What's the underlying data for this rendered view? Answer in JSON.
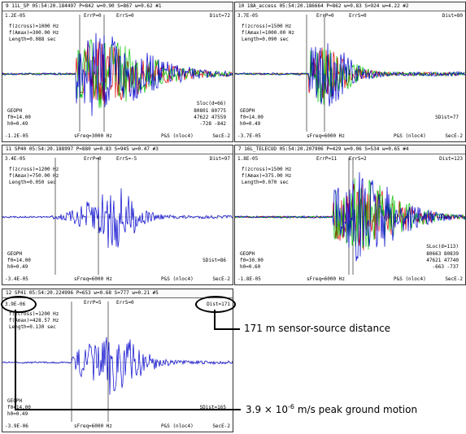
{
  "panels": [
    {
      "header": "9   11L_SP  05:54:20.184497  P=842  w=0.90  S=867  w=0.62  #1",
      "top_left": "1.2E-05",
      "bottom_left": "-1.2E-05",
      "err_p": "ErrP=0",
      "err_s": "ErrS=0",
      "dist": "Dist=72",
      "fcross": "f(zcross)=1000 Hz",
      "famax": "f(Amax)=300.00 Hz",
      "length": "Length=0.088 sec",
      "geoph": "GEOPH",
      "f0": "f0=14.00",
      "h0": "h0=0.49",
      "sfreq": "sFreq=3000 Hz",
      "ps": "P&S (nloc4)",
      "sec": "SecE-2",
      "sloc": "Sloc(d=66)",
      "sloc_vals": [
        "80801   80775",
        "47622   47559",
        "-728    -842"
      ],
      "sdist": ""
    },
    {
      "header": "10   18A_access  05:54:20.186664  P=862  w=0.83  S=924  w=4.22  #2",
      "top_left": "3.7E-05",
      "bottom_left": "-3.7E-05",
      "err_p": "ErrP=0",
      "err_s": "ErrS=0",
      "dist": "Dist=80",
      "fcross": "f(zcross)=1500 Hz",
      "famax": "f(Amax)=1000.00 Hz",
      "length": "Length=0.090 sec",
      "geoph": "GEOPH",
      "f0": "f0=14.00",
      "h0": "h0=0.49",
      "sfreq": "sFreq=6000 Hz",
      "ps": "P&S (nloc4)",
      "sec": "SecE-2",
      "sloc": "",
      "sloc_vals": [],
      "sdist": "SDist=77"
    },
    {
      "header": "11   SP40  05:54:20.188997  P=880  w=0.83  S=945  w=0.47  #3",
      "top_left": "3.4E-05",
      "bottom_left": "-3.4E-05",
      "err_p": "ErrP=0",
      "err_s": "ErrS=-5",
      "dist": "Dist=97",
      "fcross": "f(zcross)=1200 Hz",
      "famax": "f(Amax)=750.00 Hz",
      "length": "Length=0.050 sec",
      "geoph": "GEOPH",
      "f0": "f0=14.00",
      "h0": "h0=0.49",
      "sfreq": "sFreq=6000 Hz",
      "ps": "P&S (nloc4)",
      "sec": "SecE-2",
      "sloc": "",
      "sloc_vals": [],
      "sdist": "SDist=86"
    },
    {
      "header": "7   16L_TELECUD  05:54:20.207906  P=429  w=0.06  S=534  w=0.65  #4",
      "top_left": "1.8E-05",
      "bottom_left": "-1.8E-05",
      "err_p": "ErrP=11",
      "err_s": "ErrS=2",
      "dist": "Dist=123",
      "fcross": "f(zcross)=1500 Hz",
      "famax": "f(Amax)=375.00 Hz",
      "length": "Length=0.070 sec",
      "geoph": "GEOPH",
      "f0": "f0=30.00",
      "h0": "h0=0.60",
      "sfreq": "sFreq=6000 Hz",
      "ps": "P&S (nloc4)",
      "sec": "SecE-2",
      "sloc": "SLoc(d=113)",
      "sloc_vals": [
        "80663   80839",
        "47621   47740",
        "-663    -737"
      ],
      "sdist": ""
    },
    {
      "header": "12   SP41  05:54:20.224996  P=653  w=0.68  S=777  w=0.21  #5",
      "top_left": "3.9E-06",
      "bottom_left": "-3.9E-06",
      "err_p": "ErrP=5",
      "err_s": "ErrS=0",
      "dist": "Dist=171",
      "fcross": "f(zcross)=1200 Hz",
      "famax": "f(Amax)=428.57 Hz",
      "length": "Length=0.130 sec",
      "geoph": "GEOPH",
      "f0": "f0=14.00",
      "h0": "h0=0.49",
      "sfreq": "sFreq=6000 Hz",
      "ps": "P&S (nloc4)",
      "sec": "SecE-2",
      "sloc": "",
      "sloc_vals": [],
      "sdist": "SDist=165"
    }
  ],
  "annotations": {
    "distance": "171 m sensor-source distance",
    "peak_prefix": "3.9 × 10",
    "peak_exp": "-6",
    "peak_suffix": " m/s peak ground motion"
  },
  "colors": {
    "blue": "#0000cc",
    "green": "#00c000",
    "red": "#dd0000"
  }
}
